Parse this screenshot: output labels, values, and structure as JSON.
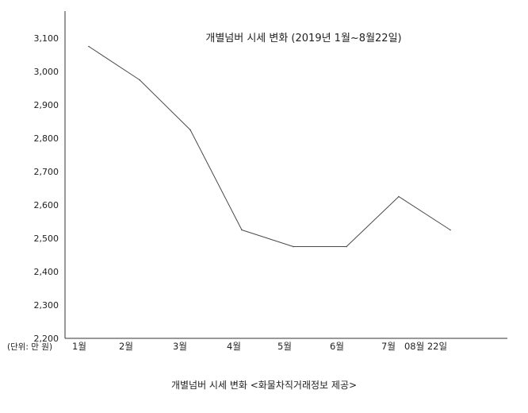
{
  "chart_data": {
    "type": "line",
    "title": "개별넘버 시세 변화 (2019년 1월~8월22일)",
    "unit_label": "(단위: 만 원)",
    "categories": [
      "1월",
      "2월",
      "3월",
      "4월",
      "5월",
      "6월",
      "7월",
      "08월 22일"
    ],
    "series": [
      {
        "values": [
          3075,
          2975,
          2825,
          2525,
          2475,
          2475,
          2625,
          2525
        ]
      }
    ],
    "y_ticks": [
      "3,100",
      "3,000",
      "2,900",
      "2,800",
      "2,700",
      "2,600",
      "2,500",
      "2,400",
      "2,300",
      "2,200"
    ],
    "y_tick_values": [
      3100,
      3000,
      2900,
      2800,
      2700,
      2600,
      2500,
      2400,
      2300,
      2200
    ],
    "ylim": [
      2200,
      3100
    ],
    "grid": false,
    "line_color": "#4a4a4a",
    "axis_color": "#333333"
  },
  "caption": "개별넘버 시세 변화 <화물차직거래정보 제공>"
}
